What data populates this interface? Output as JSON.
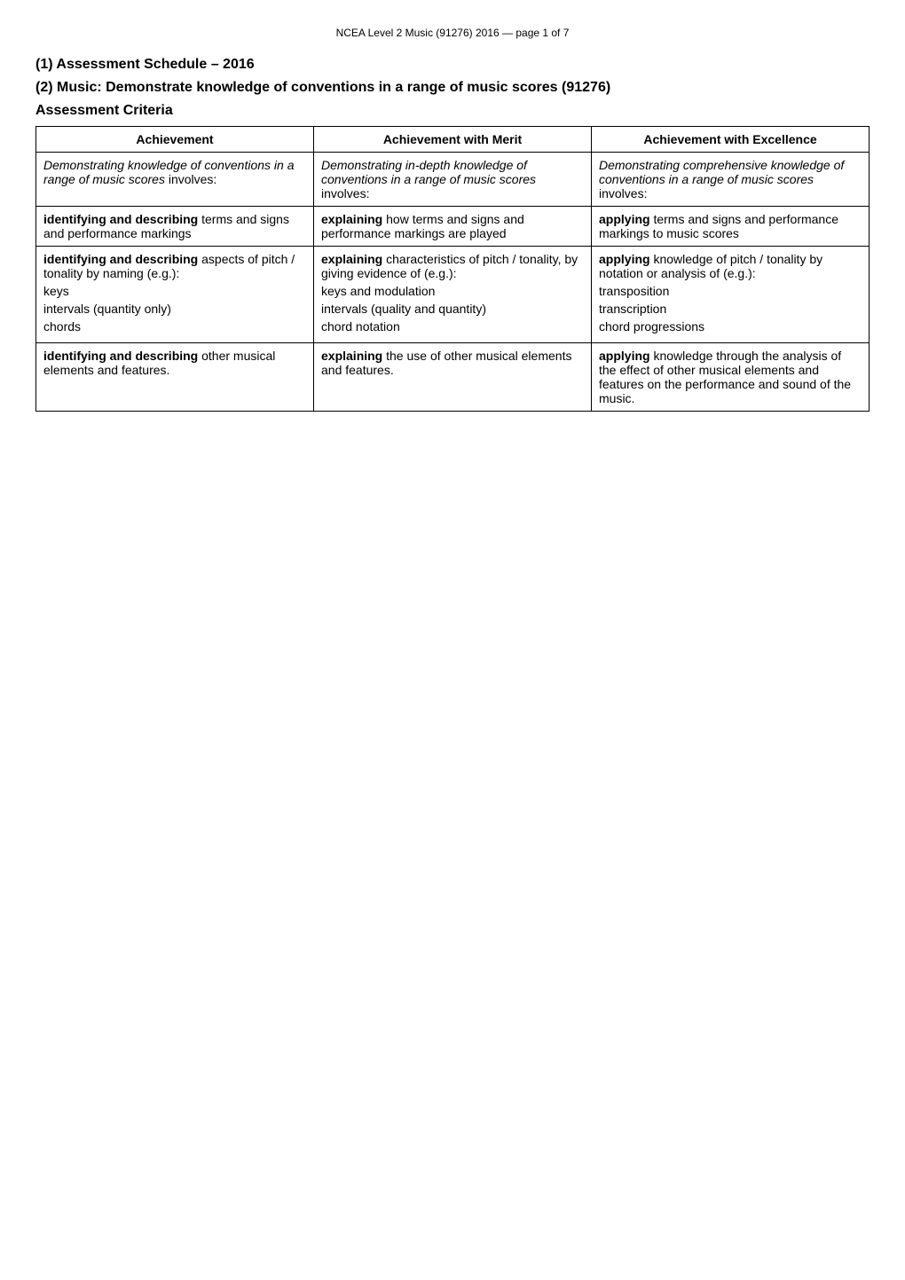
{
  "header": "NCEA Level 2 Music (91276) 2016 — page 1 of 7",
  "title1": "(1) Assessment Schedule – 2016",
  "title2": "(2) Music: Demonstrate knowledge of conventions in a range of music scores (91276)",
  "subheading": "Assessment Criteria",
  "table": {
    "columns": [
      "Achievement",
      "Achievement with Merit",
      "Achievement with Excellence"
    ],
    "rows": [
      {
        "a": {
          "pre_italic": "Demonstrating knowledge of conventions in a range of music scores",
          "after": " involves:"
        },
        "m": {
          "pre_italic": "Demonstrating in-depth knowledge of conventions in a range of music scores",
          "after": " involves:"
        },
        "e": {
          "pre_italic": "Demonstrating comprehensive knowledge of conventions in a range of music scores",
          "after": " involves:"
        }
      },
      {
        "a": {
          "bold": "identifying and describing",
          "after": " terms and signs and performance markings"
        },
        "m": {
          "bold": "explaining",
          "after": " how terms and signs and performance markings are played"
        },
        "e": {
          "bold": "applying",
          "after": " terms and signs and performance markings to music scores"
        }
      },
      {
        "a": {
          "l1_bold": "identifying and describing",
          "l1_after": " aspects of pitch / tonality by naming (e.g.):",
          "l2": "keys",
          "l3": "intervals (quantity only)",
          "l4": "chords"
        },
        "m": {
          "l1_bold": "explaining",
          "l1_after": " characteristics of pitch / tonality, by giving evidence of (e.g.):",
          "l2": "keys and modulation",
          "l3": "intervals (quality and quantity)",
          "l4": "chord notation"
        },
        "e": {
          "l1_bold": "applying",
          "l1_after": " knowledge of pitch / tonality by notation or analysis of (e.g.):",
          "l2": "transposition",
          "l3": "transcription",
          "l4": "chord progressions"
        }
      },
      {
        "a": {
          "bold": "identifying and describing",
          "after": " other musical elements and features."
        },
        "m": {
          "bold": "explaining",
          "after": " the use of other musical elements and features."
        },
        "e": {
          "bold": "applying",
          "after": " knowledge through the analysis of the effect of other musical elements and features on the performance and sound of the music."
        }
      }
    ]
  }
}
